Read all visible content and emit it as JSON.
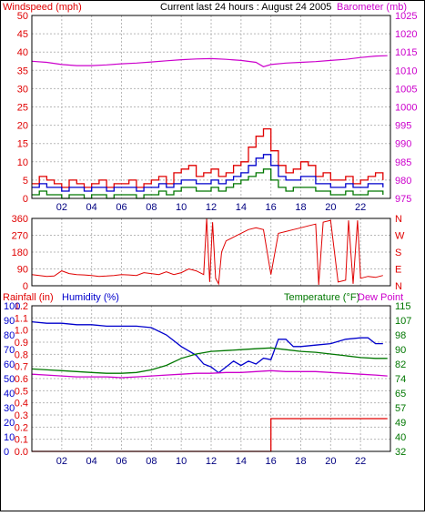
{
  "header": {
    "left_title": "Windspeed (mph)",
    "center_title": "Current last 24 hours : August 24 2005",
    "right_title": "Barometer (mb)"
  },
  "colors": {
    "red": "#e00000",
    "blue": "#0000cc",
    "green": "#007700",
    "magenta": "#cc00cc",
    "grid": "#b8b8b8"
  },
  "x_ticks": [
    "02",
    "04",
    "06",
    "08",
    "10",
    "12",
    "14",
    "16",
    "18",
    "20",
    "22"
  ],
  "chart_data": [
    {
      "type": "line",
      "id": "wind",
      "ylim_left": [
        0,
        50
      ],
      "yticks_left": [
        "50",
        "45",
        "40",
        "35",
        "30",
        "25",
        "20",
        "15",
        "10",
        "5",
        "0"
      ],
      "ylim_right": [
        975,
        1025
      ],
      "yticks_right": [
        "1025",
        "1020",
        "1015",
        "1010",
        "1005",
        "1000",
        "995",
        "990",
        "985",
        "980",
        "975"
      ],
      "x_range": [
        0,
        24
      ],
      "series": [
        {
          "color": "red",
          "axis": "left",
          "x": [
            0,
            0.5,
            1,
            1.5,
            2,
            2.5,
            3,
            3.5,
            4,
            4.5,
            5,
            5.5,
            6,
            6.5,
            7,
            7.5,
            8,
            8.5,
            9,
            9.5,
            10,
            10.5,
            11,
            11.5,
            12,
            12.5,
            13,
            13.5,
            14,
            14.5,
            15,
            15.5,
            16,
            16.5,
            17,
            17.5,
            18,
            18.5,
            19,
            19.5,
            20,
            20.5,
            21,
            21.5,
            22,
            22.5,
            23,
            23.5
          ],
          "y": [
            4,
            6,
            5,
            4,
            3,
            5,
            4,
            3,
            4,
            5,
            3,
            4,
            4,
            5,
            3,
            4,
            5,
            6,
            4,
            7,
            8,
            9,
            6,
            7,
            8,
            6,
            7,
            9,
            10,
            14,
            17,
            19,
            13,
            9,
            7,
            8,
            10,
            9,
            6,
            7,
            5,
            5,
            6,
            4,
            5,
            6,
            7,
            5
          ]
        },
        {
          "color": "blue",
          "axis": "left",
          "x": [
            0,
            0.5,
            1,
            1.5,
            2,
            2.5,
            3,
            3.5,
            4,
            4.5,
            5,
            5.5,
            6,
            6.5,
            7,
            7.5,
            8,
            8.5,
            9,
            9.5,
            10,
            10.5,
            11,
            11.5,
            12,
            12.5,
            13,
            13.5,
            14,
            14.5,
            15,
            15.5,
            16,
            16.5,
            17,
            17.5,
            18,
            18.5,
            19,
            19.5,
            20,
            20.5,
            21,
            21.5,
            22,
            22.5,
            23,
            23.5
          ],
          "y": [
            3,
            4,
            3,
            3,
            2,
            3,
            3,
            2,
            3,
            3,
            2,
            3,
            3,
            3,
            2,
            3,
            3,
            4,
            3,
            4,
            5,
            5,
            4,
            4,
            5,
            4,
            5,
            6,
            7,
            9,
            11,
            12,
            9,
            6,
            5,
            5,
            6,
            6,
            4,
            4,
            3,
            3,
            4,
            3,
            3,
            4,
            4,
            3
          ]
        },
        {
          "color": "green",
          "axis": "left",
          "x": [
            0,
            0.5,
            1,
            1.5,
            2,
            2.5,
            3,
            3.5,
            4,
            4.5,
            5,
            5.5,
            6,
            6.5,
            7,
            7.5,
            8,
            8.5,
            9,
            9.5,
            10,
            10.5,
            11,
            11.5,
            12,
            12.5,
            13,
            13.5,
            14,
            14.5,
            15,
            15.5,
            16,
            16.5,
            17,
            17.5,
            18,
            18.5,
            19,
            19.5,
            20,
            20.5,
            21,
            21.5,
            22,
            22.5,
            23,
            23.5
          ],
          "y": [
            1,
            2,
            1,
            1,
            0,
            1,
            1,
            0,
            1,
            1,
            0,
            1,
            1,
            1,
            0,
            1,
            1,
            2,
            1,
            2,
            3,
            3,
            2,
            2,
            3,
            2,
            3,
            4,
            5,
            6,
            7,
            8,
            5,
            3,
            2,
            3,
            3,
            3,
            2,
            2,
            1,
            1,
            2,
            1,
            1,
            2,
            2,
            1
          ]
        },
        {
          "color": "magenta",
          "axis": "right",
          "x": [
            0,
            1,
            2,
            3,
            4,
            5,
            6,
            7,
            8,
            9,
            10,
            11,
            12,
            13,
            14,
            15,
            15.5,
            16,
            17,
            18,
            19,
            20,
            21,
            22,
            23,
            23.8
          ],
          "y": [
            1012.5,
            1012.2,
            1011.6,
            1011.3,
            1011.3,
            1011.5,
            1011.8,
            1012.0,
            1012.3,
            1012.6,
            1012.9,
            1013.1,
            1013.2,
            1013.0,
            1012.7,
            1012.2,
            1011.0,
            1011.6,
            1012.0,
            1012.2,
            1012.4,
            1012.7,
            1013.0,
            1013.5,
            1013.9,
            1014.0
          ]
        }
      ]
    },
    {
      "type": "line",
      "id": "direction",
      "ylim": [
        0,
        360
      ],
      "yticks": [
        "360",
        "270",
        "180",
        "90",
        "0"
      ],
      "yticks_right": [
        "N",
        "W",
        "S",
        "E",
        "N"
      ],
      "x_range": [
        0,
        24
      ],
      "series": [
        {
          "color": "red",
          "x": [
            0,
            0.5,
            1,
            1.5,
            2,
            2.5,
            3,
            3.5,
            4,
            4.5,
            5,
            5.5,
            6,
            6.5,
            7,
            7.5,
            8,
            8.5,
            9,
            9.5,
            10,
            10.5,
            11,
            11.5,
            11.7,
            11.9,
            12.1,
            12.3,
            12.5,
            12.7,
            13,
            13.5,
            14,
            14.5,
            15,
            15.5,
            16,
            16.5,
            17,
            17.5,
            18,
            18.5,
            19,
            19.2,
            19.5,
            20,
            20.5,
            21,
            21.2,
            21.5,
            21.8,
            22,
            22.5,
            23,
            23.5
          ],
          "y": [
            60,
            55,
            50,
            52,
            80,
            65,
            60,
            58,
            55,
            50,
            52,
            55,
            60,
            58,
            55,
            70,
            65,
            60,
            75,
            60,
            70,
            90,
            80,
            60,
            360,
            20,
            340,
            40,
            10,
            180,
            240,
            260,
            280,
            300,
            310,
            300,
            60,
            280,
            290,
            300,
            310,
            320,
            330,
            5,
            340,
            350,
            20,
            30,
            350,
            10,
            350,
            40,
            50,
            45,
            55
          ]
        }
      ]
    },
    {
      "type": "line",
      "id": "climate",
      "ylim_left": [
        0,
        1.2
      ],
      "yticks_left": [
        "1.2",
        "1.1",
        "1.0",
        "0.9",
        "0.8",
        "0.7",
        "0.6",
        "0.5",
        "0.4",
        "0.3",
        "0.2",
        "0.1",
        "0.0"
      ],
      "ylim_left_humidity": [
        0,
        100
      ],
      "yticks_left_humidity": [
        "100",
        "90",
        "80",
        "70",
        "60",
        "50",
        "40",
        "30",
        "20",
        "10",
        "0"
      ],
      "ylim_right": [
        32,
        115
      ],
      "yticks_right": [
        "115",
        "107",
        "98",
        "90",
        "82",
        "74",
        "65",
        "57",
        "49",
        "40",
        "32"
      ],
      "x_range": [
        0,
        24
      ],
      "labels": {
        "left": "Rainfall (in)",
        "left2": "Humidity (%)",
        "right": "Temperature (°F)",
        "right2": "Dew Point"
      },
      "series": [
        {
          "color": "blue",
          "axis": "humidity",
          "x": [
            0,
            1,
            2,
            3,
            4,
            5,
            6,
            7,
            8,
            9,
            10,
            11,
            11.5,
            12,
            12.5,
            13,
            13.5,
            14,
            14.5,
            15,
            15.5,
            16,
            16.5,
            17,
            17.5,
            18,
            19,
            20,
            21,
            22,
            22.5,
            23,
            23.5
          ],
          "y": [
            89,
            88,
            88,
            87,
            87,
            86,
            86,
            86,
            85,
            80,
            72,
            66,
            60,
            58,
            54,
            58,
            62,
            59,
            62,
            60,
            64,
            63,
            77,
            77,
            72,
            72,
            73,
            74,
            77,
            78,
            78,
            74,
            74
          ]
        },
        {
          "color": "green",
          "axis": "temperature",
          "x": [
            0,
            1,
            2,
            3,
            4,
            5,
            6,
            7,
            8,
            9,
            10,
            11,
            12,
            13,
            14,
            15,
            16,
            17,
            18,
            19,
            20,
            21,
            22,
            23,
            23.8
          ],
          "y": [
            79,
            78.5,
            78,
            77.5,
            77,
            76.5,
            76.5,
            77,
            78.5,
            81,
            85,
            87.5,
            89,
            89.5,
            90,
            90.5,
            91,
            90,
            89,
            88.5,
            87.5,
            86.5,
            85.5,
            85,
            85
          ]
        },
        {
          "color": "magenta",
          "axis": "temperature",
          "x": [
            0,
            1,
            2,
            3,
            4,
            5,
            6,
            7,
            8,
            9,
            10,
            11,
            12,
            13,
            14,
            15,
            16,
            17,
            18,
            19,
            20,
            21,
            22,
            23,
            23.8
          ],
          "y": [
            76,
            75.5,
            75,
            74.5,
            74.5,
            74.5,
            74,
            74.5,
            75,
            75.5,
            76,
            76.5,
            76.5,
            77,
            77,
            77.5,
            78,
            77.5,
            77.5,
            77.5,
            77,
            76.5,
            76,
            75.5,
            75
          ]
        },
        {
          "color": "red",
          "axis": "rain",
          "x": [
            0,
            16,
            16,
            23.8
          ],
          "y": [
            0,
            0,
            0.27,
            0.27
          ]
        }
      ]
    }
  ]
}
